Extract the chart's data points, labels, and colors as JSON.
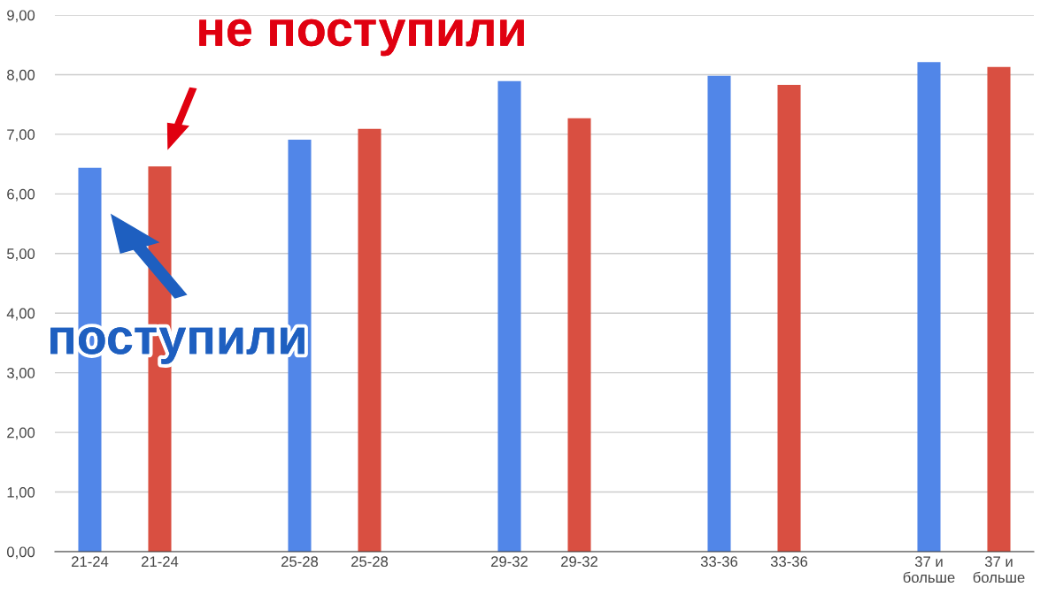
{
  "chart_data": {
    "type": "bar",
    "categories": [
      "21-24",
      "21-24",
      null,
      "25-28",
      "25-28",
      null,
      "29-32",
      "29-32",
      null,
      "33-36",
      "33-36",
      null,
      "37 и\nбольше",
      "37 и\nбольше"
    ],
    "values": [
      6.44,
      6.46,
      null,
      6.91,
      7.09,
      null,
      7.89,
      7.27,
      null,
      7.98,
      7.83,
      null,
      8.21,
      8.13
    ],
    "colors": [
      "#5186e8",
      "#d94f41",
      null,
      "#5186e8",
      "#d94f41",
      null,
      "#5186e8",
      "#d94f41",
      null,
      "#5186e8",
      "#d94f41",
      null,
      "#5186e8",
      "#d94f41"
    ],
    "ylim": [
      0,
      9
    ],
    "yticks": [
      {
        "value": 0,
        "label": "0,00"
      },
      {
        "value": 1,
        "label": "1,00"
      },
      {
        "value": 2,
        "label": "2,00"
      },
      {
        "value": 3,
        "label": "3,00"
      },
      {
        "value": 4,
        "label": "4,00"
      },
      {
        "value": 5,
        "label": "5,00"
      },
      {
        "value": 6,
        "label": "6,00"
      },
      {
        "value": 7,
        "label": "7,00"
      },
      {
        "value": 8,
        "label": "8,00"
      },
      {
        "value": 9,
        "label": "9,00"
      }
    ],
    "grid": "y",
    "annotations": [
      "не поступили",
      "поступили"
    ]
  }
}
